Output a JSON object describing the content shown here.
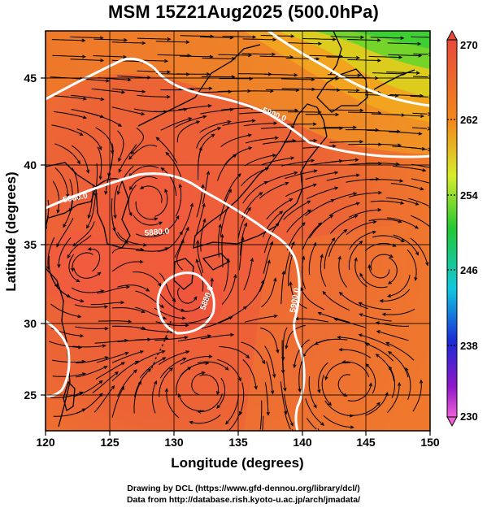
{
  "title": "MSM 15Z21Aug2025 (500.0hPa)",
  "x_axis": {
    "label": "Longitude (degrees)",
    "range": [
      120,
      150
    ],
    "ticks": [
      "120",
      "125",
      "130",
      "135",
      "140",
      "145",
      "150"
    ]
  },
  "y_axis": {
    "label": "Latitude  (degrees)",
    "range": [
      22.5,
      48
    ],
    "ticks": [
      "25",
      "30",
      "35",
      "40",
      "45"
    ]
  },
  "colorbar": {
    "range": [
      230,
      270
    ],
    "tick_labels": [
      "270",
      "262",
      "254",
      "246",
      "238",
      "230"
    ],
    "colors": {
      "top": "#e84a3a",
      "orange": "#f28a1a",
      "yellow": "#d8ec2a",
      "green": "#22c832",
      "cyan": "#10c8e0",
      "blue": "#1a2ad8",
      "purple": "#9018c8",
      "bottom": "#f060d8"
    }
  },
  "contour_labels": [
    "5880.0",
    "5900.0",
    "5880.0",
    "5900.0",
    "5880.0"
  ],
  "credits": {
    "line1": "Drawing by DCL (https://www.gfd-dennou.org/library/dcl/)",
    "line2": "Data from http://database.rish.kyoto-u.ac.jp/arch/jmadata/"
  }
}
